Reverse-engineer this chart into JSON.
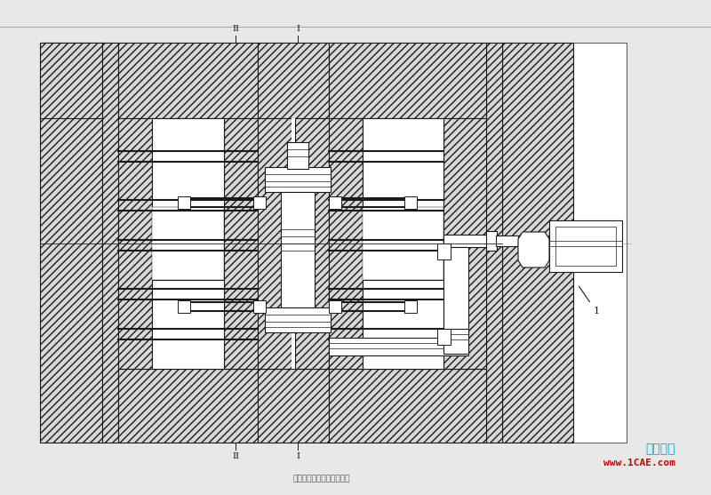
{
  "bg_color": "#e8e8e8",
  "drawing_bg": "#ffffff",
  "line_color": "#1a1a1a",
  "watermark_text1": "仿真在线",
  "watermark_text2": "www.1CAE.com",
  "watermark_color1": "#00aadd",
  "watermark_color2": "#cc0000",
  "bottom_text": "注：仿肤模具仿真分析数据",
  "label_I": "I",
  "label_II": "II",
  "label_1": "1",
  "fig_width": 8.0,
  "fig_height": 5.57,
  "dpi": 100
}
